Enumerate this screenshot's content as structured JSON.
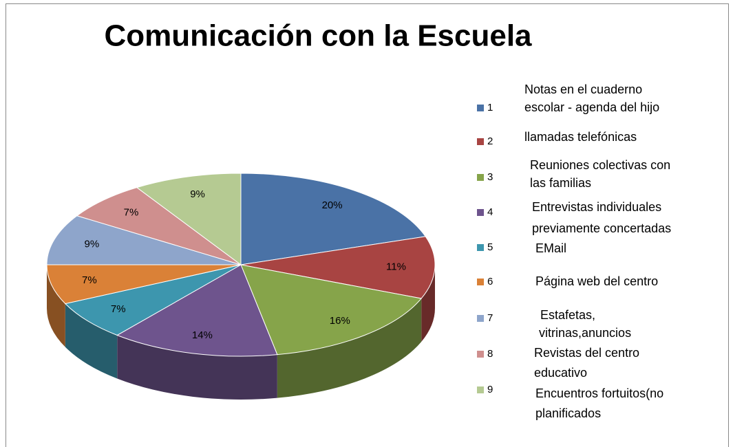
{
  "chart_data": {
    "type": "pie3d",
    "title": "Comunicación con la Escuela",
    "categories": [
      "1",
      "2",
      "3",
      "4",
      "5",
      "6",
      "7",
      "8",
      "9"
    ],
    "values": [
      20,
      11,
      16,
      14,
      7,
      7,
      9,
      7,
      9
    ],
    "value_labels": [
      "20%",
      "11%",
      "16%",
      "14%",
      "7%",
      "7%",
      "9%",
      "7%",
      "9%"
    ],
    "colors": [
      "#4a72a6",
      "#a84442",
      "#86a44a",
      "#6e548d",
      "#3d96ae",
      "#da8137",
      "#8ea5cb",
      "#cf8f8e",
      "#b5ca92"
    ],
    "legend_notes": [
      [
        "Notas en el cuaderno",
        "escolar - agenda del hijo"
      ],
      [
        "llamadas telefónicas"
      ],
      [
        "Reuniones colectivas con",
        "las familias"
      ],
      [
        "Entrevistas individuales",
        "previamente concertadas"
      ],
      [
        "EMail"
      ],
      [
        "Página web del centro"
      ],
      [
        "Estafetas,",
        "vitrinas,anuncios"
      ],
      [
        "Revistas del centro",
        "educativo"
      ],
      [
        "Encuentros fortuitos(no",
        "planificados"
      ]
    ],
    "legend": "right"
  }
}
